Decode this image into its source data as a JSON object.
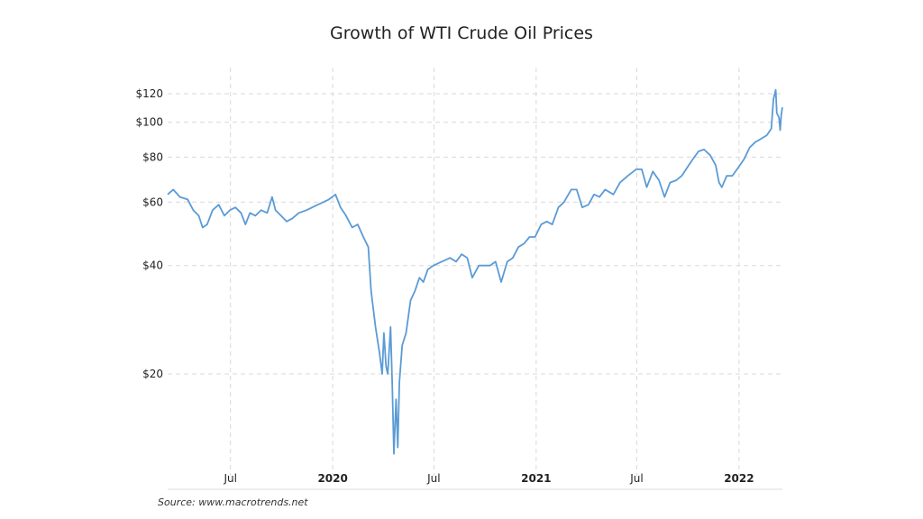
{
  "chart_data": {
    "type": "line",
    "title": "Growth of WTI Crude Oil Prices",
    "source": "Source: www.macrotrends.net",
    "y_scale": "log",
    "y_ticks": [
      {
        "value": 20,
        "label": "$20"
      },
      {
        "value": 40,
        "label": "$40"
      },
      {
        "value": 60,
        "label": "$60"
      },
      {
        "value": 80,
        "label": "$80"
      },
      {
        "value": 100,
        "label": "$100"
      },
      {
        "value": 120,
        "label": "$120"
      }
    ],
    "x_ticks": [
      {
        "date": "2019-07-01",
        "label": "Jul",
        "bold": false
      },
      {
        "date": "2020-01-01",
        "label": "2020",
        "bold": true
      },
      {
        "date": "2020-07-01",
        "label": "Jul",
        "bold": false
      },
      {
        "date": "2021-01-01",
        "label": "2021",
        "bold": true
      },
      {
        "date": "2021-07-01",
        "label": "Jul",
        "bold": false
      },
      {
        "date": "2022-01-01",
        "label": "2022",
        "bold": true
      }
    ],
    "xlim": [
      "2019-03-10",
      "2022-03-20"
    ],
    "ylim": [
      11.5,
      130
    ],
    "grid": true,
    "series_color": "#5b9bd5",
    "series": [
      {
        "points": [
          [
            "2019-03-10",
            63
          ],
          [
            "2019-03-20",
            65
          ],
          [
            "2019-04-01",
            62
          ],
          [
            "2019-04-15",
            61
          ],
          [
            "2019-04-25",
            57
          ],
          [
            "2019-05-05",
            55
          ],
          [
            "2019-05-12",
            51
          ],
          [
            "2019-05-20",
            52
          ],
          [
            "2019-05-30",
            57
          ],
          [
            "2019-06-10",
            59
          ],
          [
            "2019-06-20",
            55
          ],
          [
            "2019-06-30",
            57
          ],
          [
            "2019-07-10",
            58
          ],
          [
            "2019-07-20",
            56
          ],
          [
            "2019-07-28",
            52
          ],
          [
            "2019-08-05",
            56
          ],
          [
            "2019-08-15",
            55
          ],
          [
            "2019-08-25",
            57
          ],
          [
            "2019-09-05",
            56
          ],
          [
            "2019-09-14",
            62
          ],
          [
            "2019-09-20",
            57
          ],
          [
            "2019-09-30",
            55
          ],
          [
            "2019-10-10",
            53
          ],
          [
            "2019-10-20",
            54
          ],
          [
            "2019-11-01",
            56
          ],
          [
            "2019-11-15",
            57
          ],
          [
            "2019-11-25",
            58
          ],
          [
            "2019-12-05",
            59
          ],
          [
            "2019-12-15",
            60
          ],
          [
            "2019-12-25",
            61
          ],
          [
            "2020-01-06",
            63
          ],
          [
            "2020-01-15",
            58
          ],
          [
            "2020-01-25",
            55
          ],
          [
            "2020-02-05",
            51
          ],
          [
            "2020-02-15",
            52
          ],
          [
            "2020-02-25",
            48
          ],
          [
            "2020-03-05",
            45
          ],
          [
            "2020-03-10",
            34
          ],
          [
            "2020-03-18",
            27
          ],
          [
            "2020-03-25",
            23
          ],
          [
            "2020-03-30",
            20
          ],
          [
            "2020-04-02",
            26
          ],
          [
            "2020-04-06",
            21
          ],
          [
            "2020-04-09",
            20
          ],
          [
            "2020-04-14",
            27
          ],
          [
            "2020-04-17",
            19
          ],
          [
            "2020-04-20",
            12
          ],
          [
            "2020-04-24",
            17
          ],
          [
            "2020-04-27",
            12.5
          ],
          [
            "2020-04-30",
            19
          ],
          [
            "2020-05-05",
            24
          ],
          [
            "2020-05-12",
            26
          ],
          [
            "2020-05-20",
            32
          ],
          [
            "2020-05-28",
            34
          ],
          [
            "2020-06-05",
            37
          ],
          [
            "2020-06-12",
            36
          ],
          [
            "2020-06-20",
            39
          ],
          [
            "2020-06-30",
            40
          ],
          [
            "2020-07-15",
            41
          ],
          [
            "2020-07-30",
            42
          ],
          [
            "2020-08-10",
            41
          ],
          [
            "2020-08-20",
            43
          ],
          [
            "2020-08-30",
            42
          ],
          [
            "2020-09-08",
            37
          ],
          [
            "2020-09-20",
            40
          ],
          [
            "2020-09-30",
            40
          ],
          [
            "2020-10-10",
            40
          ],
          [
            "2020-10-20",
            41
          ],
          [
            "2020-10-30",
            36
          ],
          [
            "2020-11-10",
            41
          ],
          [
            "2020-11-20",
            42
          ],
          [
            "2020-11-30",
            45
          ],
          [
            "2020-12-10",
            46
          ],
          [
            "2020-12-20",
            48
          ],
          [
            "2020-12-30",
            48
          ],
          [
            "2021-01-10",
            52
          ],
          [
            "2021-01-20",
            53
          ],
          [
            "2021-01-30",
            52
          ],
          [
            "2021-02-10",
            58
          ],
          [
            "2021-02-20",
            60
          ],
          [
            "2021-03-05",
            65
          ],
          [
            "2021-03-15",
            65
          ],
          [
            "2021-03-25",
            58
          ],
          [
            "2021-04-05",
            59
          ],
          [
            "2021-04-15",
            63
          ],
          [
            "2021-04-25",
            62
          ],
          [
            "2021-05-05",
            65
          ],
          [
            "2021-05-20",
            63
          ],
          [
            "2021-06-01",
            68
          ],
          [
            "2021-06-15",
            71
          ],
          [
            "2021-06-30",
            74
          ],
          [
            "2021-07-10",
            74
          ],
          [
            "2021-07-19",
            66
          ],
          [
            "2021-07-30",
            73
          ],
          [
            "2021-08-10",
            69
          ],
          [
            "2021-08-20",
            62
          ],
          [
            "2021-08-30",
            68
          ],
          [
            "2021-09-10",
            69
          ],
          [
            "2021-09-20",
            71
          ],
          [
            "2021-09-30",
            75
          ],
          [
            "2021-10-10",
            79
          ],
          [
            "2021-10-20",
            83
          ],
          [
            "2021-10-30",
            84
          ],
          [
            "2021-11-10",
            81
          ],
          [
            "2021-11-20",
            76
          ],
          [
            "2021-11-26",
            68
          ],
          [
            "2021-12-01",
            66
          ],
          [
            "2021-12-10",
            71
          ],
          [
            "2021-12-20",
            71
          ],
          [
            "2021-12-31",
            75
          ],
          [
            "2022-01-10",
            79
          ],
          [
            "2022-01-20",
            85
          ],
          [
            "2022-01-30",
            88
          ],
          [
            "2022-02-10",
            90
          ],
          [
            "2022-02-20",
            92
          ],
          [
            "2022-02-28",
            96
          ],
          [
            "2022-03-04",
            116
          ],
          [
            "2022-03-08",
            123
          ],
          [
            "2022-03-10",
            106
          ],
          [
            "2022-03-14",
            103
          ],
          [
            "2022-03-16",
            95
          ],
          [
            "2022-03-18",
            105
          ],
          [
            "2022-03-20",
            110
          ]
        ]
      }
    ]
  }
}
